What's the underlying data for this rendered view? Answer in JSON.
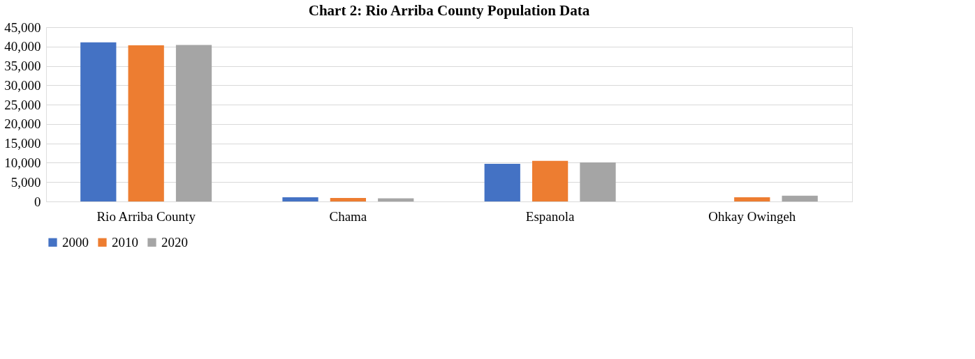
{
  "chart_data": {
    "type": "bar",
    "title": "Chart 2: Rio Arriba County Population Data",
    "categories": [
      "Rio Arriba County",
      "Chama",
      "Espanola",
      "Ohkay Owingeh"
    ],
    "series": [
      {
        "name": "2000",
        "color": "#4472c4",
        "values": [
          41100,
          1100,
          9700,
          null
        ]
      },
      {
        "name": "2010",
        "color": "#ed7d31",
        "values": [
          40300,
          900,
          10500,
          1100
        ]
      },
      {
        "name": "2020",
        "color": "#a5a5a5",
        "values": [
          40400,
          800,
          10100,
          1500
        ]
      }
    ],
    "ylim": [
      0,
      45000
    ],
    "yticks": [
      0,
      {
        "value": 5000,
        "label": "5,000"
      },
      {
        "value": 10000,
        "label": "10,000"
      },
      {
        "value": 15000,
        "label": "15,000"
      },
      {
        "value": 20000,
        "label": "20,000"
      },
      {
        "value": 25000,
        "label": "25,000"
      },
      {
        "value": 30000,
        "label": "30,000"
      },
      {
        "value": 35000,
        "label": "35,000"
      },
      {
        "value": 40000,
        "label": "40,000"
      },
      {
        "value": 45000,
        "label": "45,000"
      }
    ],
    "grid": "y",
    "legend": "bottom"
  }
}
